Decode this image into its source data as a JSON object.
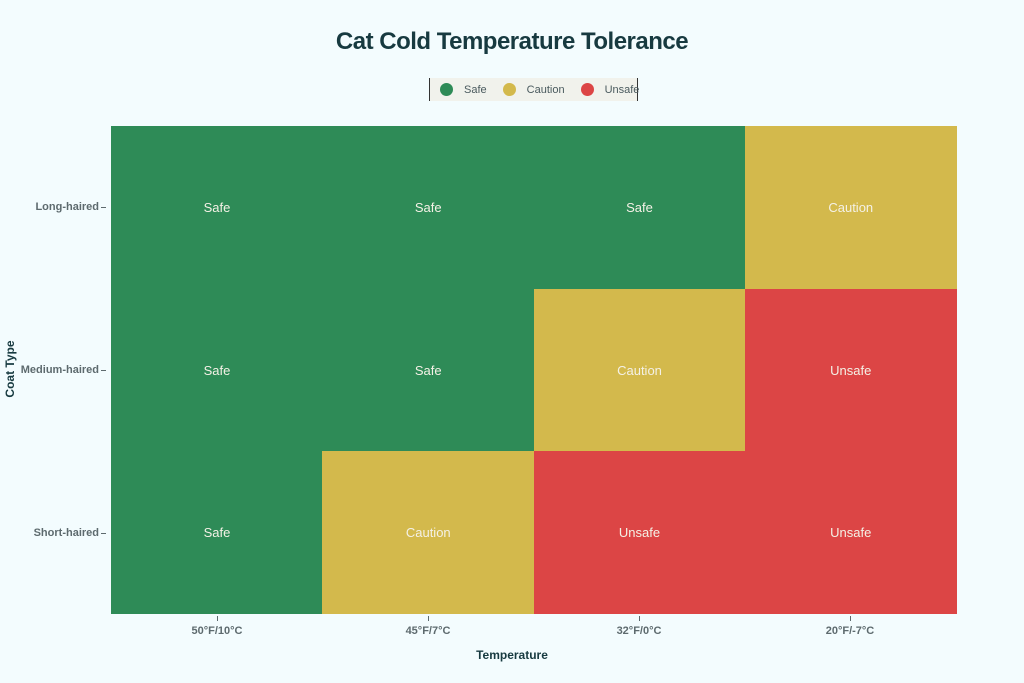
{
  "chart_data": {
    "type": "heatmap",
    "title": "Cat Cold Temperature Tolerance",
    "xlabel": "Temperature",
    "ylabel": "Coat Type",
    "x_categories": [
      "50°F/10°C",
      "45°F/7°C",
      "32°F/0°C",
      "20°F/-7°C"
    ],
    "y_categories": [
      "Long-haired",
      "Medium-haired",
      "Short-haired"
    ],
    "values": [
      [
        "Safe",
        "Safe",
        "Safe",
        "Caution"
      ],
      [
        "Safe",
        "Safe",
        "Caution",
        "Unsafe"
      ],
      [
        "Safe",
        "Caution",
        "Unsafe",
        "Unsafe"
      ]
    ],
    "legend": [
      {
        "label": "Safe",
        "color": "#2e8b57"
      },
      {
        "label": "Caution",
        "color": "#d3b94c"
      },
      {
        "label": "Unsafe",
        "color": "#dc4545"
      }
    ],
    "legend_position": "top-center",
    "grid": false
  }
}
